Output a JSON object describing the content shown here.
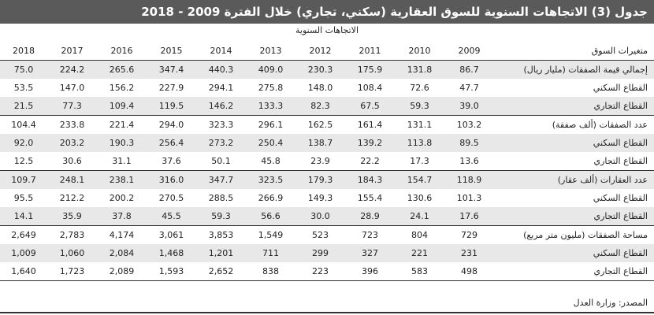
{
  "title": "جدول (3) الاتجاهات السنوية للسوق العقارية (سكني، تجاري) خلال الفترة 2009 - 2018",
  "subheader": "الاتجاهات السنوية",
  "column_header_label": "متغيرات السوق",
  "years": [
    "2018",
    "2017",
    "2016",
    "2015",
    "2014",
    "2013",
    "2012",
    "2011",
    "2010",
    "2009"
  ],
  "rows": [
    {
      "label": "إجمالي قيمة الصفقات (مليار ريال)",
      "values": [
        "75.0",
        "224.2",
        "265.6",
        "347.4",
        "440.3",
        "409.0",
        "230.3",
        "175.9",
        "131.8",
        "86.7"
      ]
    },
    {
      "label": "القطاع السكني",
      "values": [
        "53.5",
        "147.0",
        "156.2",
        "227.9",
        "294.1",
        "275.8",
        "148.0",
        "108.4",
        "72.6",
        "47.7"
      ]
    },
    {
      "label": "القطاع التجاري",
      "values": [
        "21.5",
        "77.3",
        "109.4",
        "119.5",
        "146.2",
        "133.3",
        "82.3",
        "67.5",
        "59.3",
        "39.0"
      ]
    },
    {
      "label": "عدد الصفقات (ألف صفقة)",
      "values": [
        "104.4",
        "233.8",
        "221.4",
        "294.0",
        "323.3",
        "296.1",
        "162.5",
        "161.4",
        "131.1",
        "103.2"
      ]
    },
    {
      "label": "القطاع السكني",
      "values": [
        "92.0",
        "203.2",
        "190.3",
        "256.4",
        "273.2",
        "250.4",
        "138.7",
        "139.2",
        "113.8",
        "89.5"
      ]
    },
    {
      "label": "القطاع التجاري",
      "values": [
        "12.5",
        "30.6",
        "31.1",
        "37.6",
        "50.1",
        "45.8",
        "23.9",
        "22.2",
        "17.3",
        "13.6"
      ]
    },
    {
      "label": "عدد العقارات (ألف عقار)",
      "values": [
        "109.7",
        "248.1",
        "238.1",
        "316.0",
        "347.7",
        "323.5",
        "179.3",
        "184.3",
        "154.7",
        "118.9"
      ]
    },
    {
      "label": "القطاع السكني",
      "values": [
        "95.5",
        "212.2",
        "200.2",
        "270.5",
        "288.5",
        "266.9",
        "149.3",
        "155.4",
        "130.6",
        "101.3"
      ]
    },
    {
      "label": "القطاع التجاري",
      "values": [
        "14.1",
        "35.9",
        "37.8",
        "45.5",
        "59.3",
        "56.6",
        "30.0",
        "28.9",
        "24.1",
        "17.6"
      ]
    },
    {
      "label": "مساحة الصفقات (مليون متر مربع)",
      "values": [
        "2,649",
        "2,783",
        "4,174",
        "3,061",
        "3,853",
        "1,549",
        "523",
        "723",
        "804",
        "729"
      ]
    },
    {
      "label": "القطاع السكني",
      "values": [
        "1,009",
        "1,060",
        "2,084",
        "1,468",
        "1,201",
        "711",
        "299",
        "327",
        "221",
        "231"
      ]
    },
    {
      "label": "القطاع التجاري",
      "values": [
        "1,640",
        "1,723",
        "2,089",
        "1,593",
        "2,652",
        "838",
        "223",
        "396",
        "583",
        "498"
      ]
    }
  ],
  "source": "المصدر: وزارة العدل"
}
